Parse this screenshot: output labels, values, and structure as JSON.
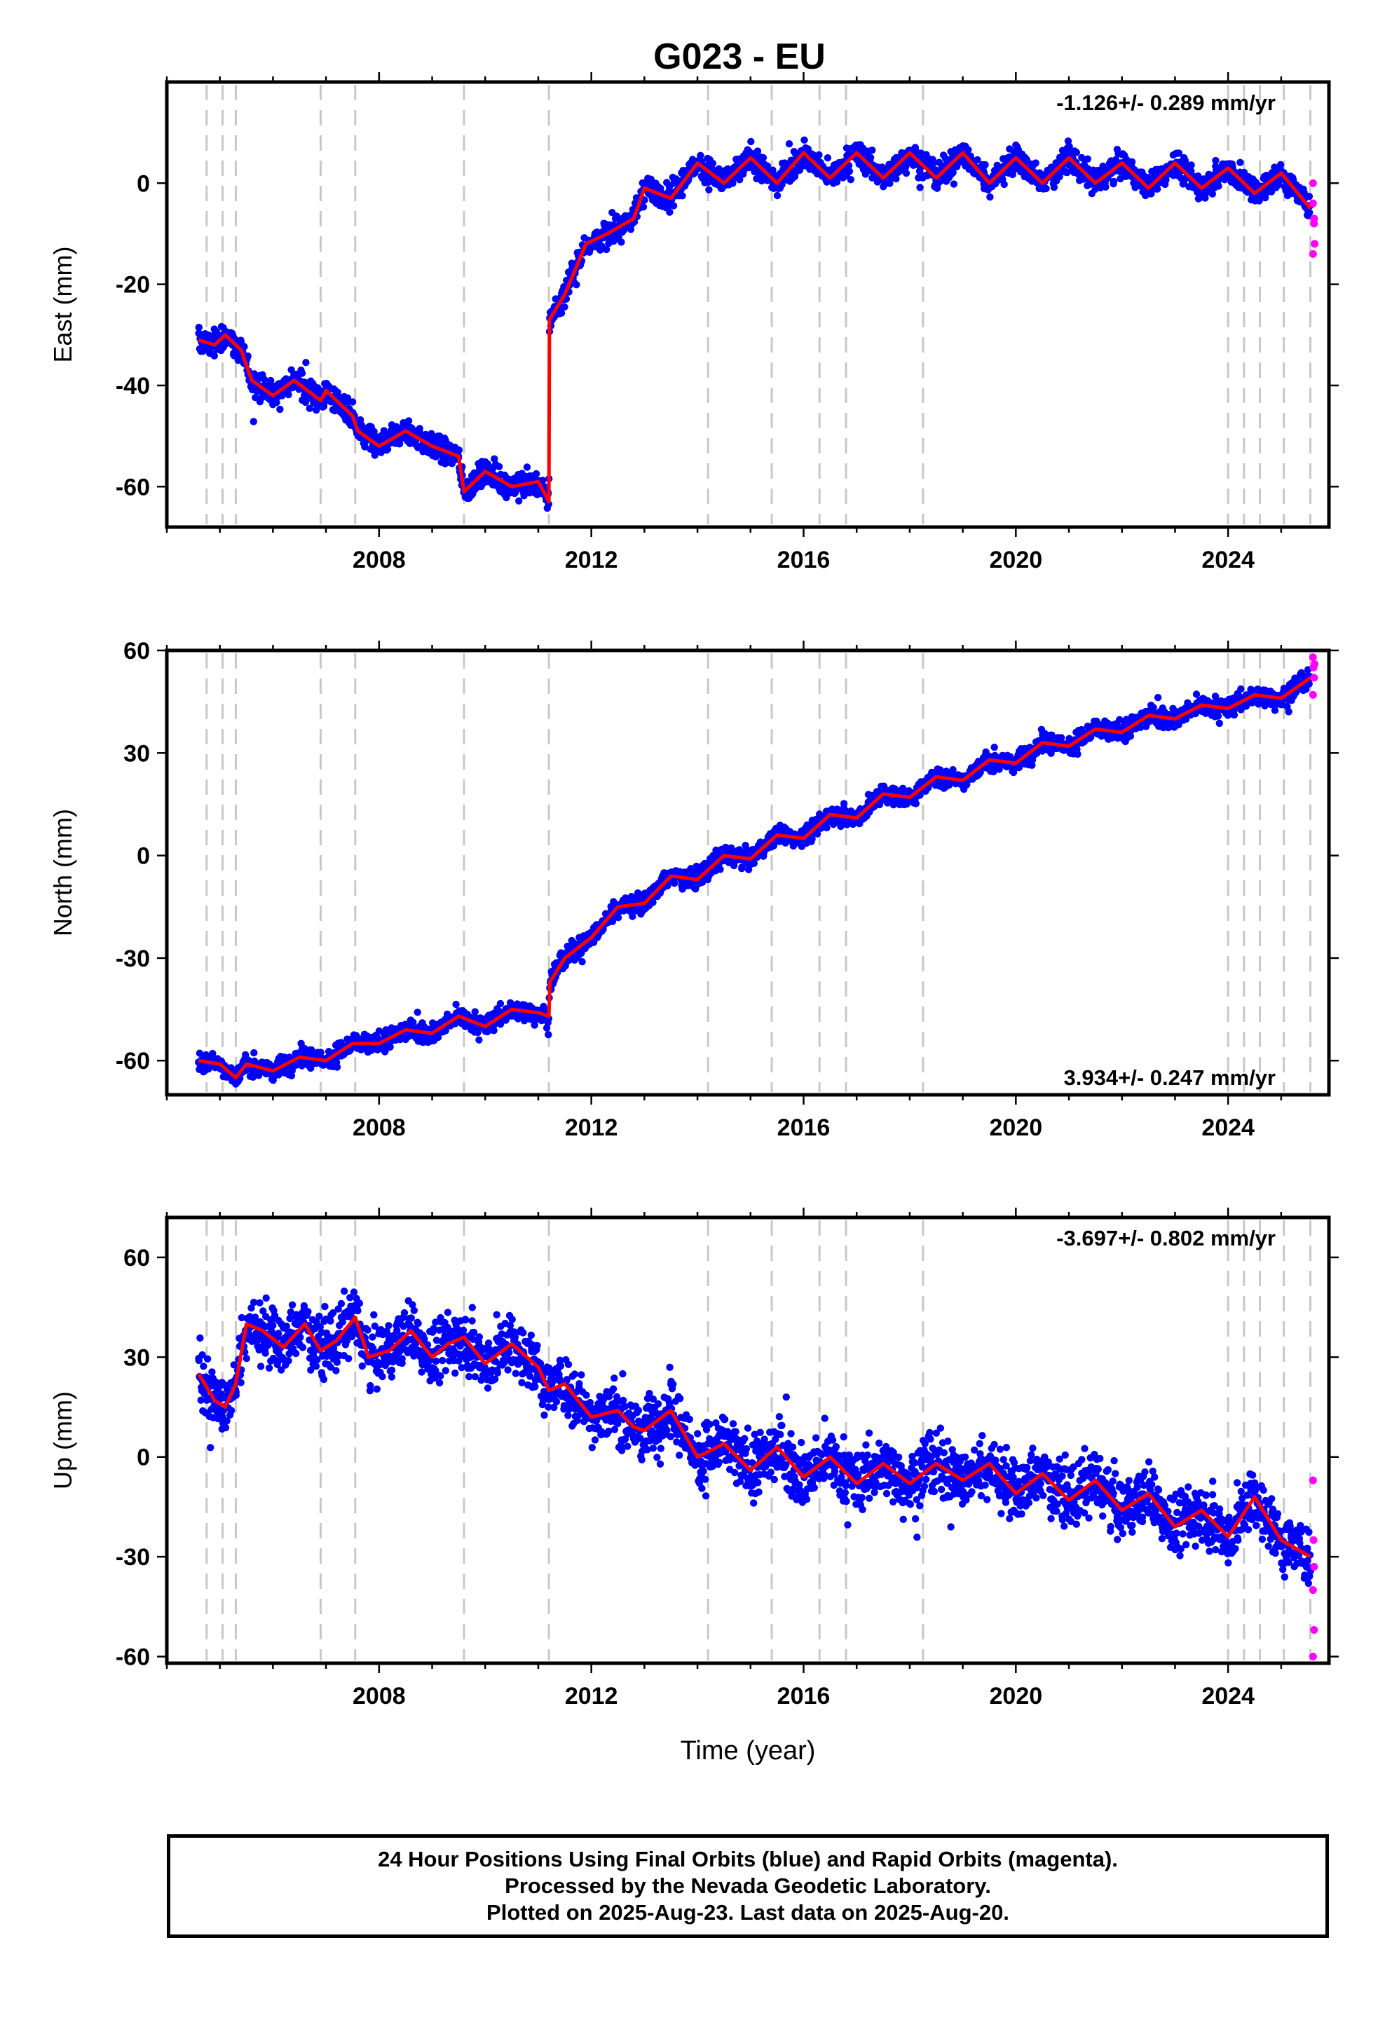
{
  "title": "G023 - EU",
  "colors": {
    "final_orbits": "#0000ff",
    "rapid_orbits": "#ff00ff",
    "model": "#ff0000",
    "event_lines": "#c8c8c8"
  },
  "xlabel": "Time (year)",
  "x_ticks": [
    "2008",
    "2012",
    "2016",
    "2020",
    "2024"
  ],
  "event_lines": [
    2004.75,
    2005.05,
    2005.3,
    2006.9,
    2007.55,
    2009.6,
    2011.2,
    2014.2,
    2015.4,
    2016.3,
    2016.8,
    2018.25,
    2024.0,
    2024.3,
    2024.6,
    2025.05,
    2025.55
  ],
  "chart_data": [
    {
      "type": "scatter",
      "name": "east",
      "ylabel": "East (mm)",
      "xlim": [
        2004.0,
        2025.9
      ],
      "ylim": [
        -68,
        20
      ],
      "y_ticks": [
        0,
        -20,
        -40,
        -60
      ],
      "grid": false,
      "rate_label": "-1.126+/- 0.289 mm/yr",
      "rate_position": "top-right",
      "noise": 1.8,
      "model": {
        "name": "model",
        "x": [
          2004.6,
          2004.9,
          2005.1,
          2005.4,
          2005.6,
          2006.0,
          2006.4,
          2006.9,
          2007.0,
          2007.5,
          2007.6,
          2008.0,
          2008.5,
          2009.0,
          2009.5,
          2009.6,
          2010.0,
          2010.5,
          2011.0,
          2011.2,
          2011.21,
          2011.5,
          2011.9,
          2012.3,
          2012.8,
          2013.0,
          2013.5,
          2014.0,
          2014.5,
          2015.0,
          2015.5,
          2016.0,
          2016.5,
          2017.0,
          2017.5,
          2018.0,
          2018.5,
          2019.0,
          2019.5,
          2020.0,
          2020.5,
          2021.0,
          2021.5,
          2022.0,
          2022.5,
          2023.0,
          2023.5,
          2024.0,
          2024.5,
          2025.0,
          2025.55
        ],
        "y": [
          -31,
          -32,
          -30,
          -33,
          -39,
          -42,
          -39,
          -43,
          -41,
          -46,
          -49,
          -52,
          -49,
          -52,
          -54,
          -61,
          -57,
          -60,
          -59,
          -63,
          -27,
          -22,
          -12,
          -10,
          -7,
          -1,
          -3,
          4,
          0,
          5,
          0,
          6,
          1,
          6,
          1,
          6,
          1,
          6,
          0,
          5,
          0,
          5,
          0,
          4,
          -1,
          4,
          -1,
          3,
          -2,
          2,
          -5
        ]
      },
      "rapid": {
        "name": "rapid",
        "x": [
          2025.6,
          2025.6,
          2025.62,
          2025.63,
          2025.6,
          2025.62
        ],
        "y": [
          0,
          -4,
          -8,
          -12,
          -14,
          -7
        ]
      }
    },
    {
      "type": "scatter",
      "name": "north",
      "ylabel": "North (mm)",
      "xlim": [
        2004.0,
        2025.9
      ],
      "ylim": [
        -70,
        60
      ],
      "y_ticks": [
        60,
        30,
        0,
        -30,
        -60
      ],
      "grid": false,
      "rate_label": "3.934+/- 0.247 mm/yr",
      "rate_position": "bottom-right",
      "noise": 2.0,
      "model": {
        "name": "model",
        "x": [
          2004.6,
          2005.0,
          2005.3,
          2005.5,
          2006.0,
          2006.5,
          2007.0,
          2007.5,
          2008.0,
          2008.5,
          2009.0,
          2009.5,
          2010.0,
          2010.5,
          2011.0,
          2011.2,
          2011.22,
          2011.5,
          2012.0,
          2012.5,
          2013.0,
          2013.5,
          2014.0,
          2014.5,
          2015.0,
          2015.5,
          2016.0,
          2016.5,
          2017.0,
          2017.5,
          2018.0,
          2018.5,
          2019.0,
          2019.5,
          2020.0,
          2020.5,
          2021.0,
          2021.5,
          2022.0,
          2022.5,
          2023.0,
          2023.5,
          2024.0,
          2024.5,
          2025.0,
          2025.55
        ],
        "y": [
          -60,
          -61,
          -65,
          -61,
          -63,
          -59,
          -60,
          -55,
          -55,
          -51,
          -52,
          -47,
          -50,
          -45,
          -46,
          -47,
          -37,
          -30,
          -24,
          -15,
          -14,
          -6,
          -7,
          0,
          -1,
          6,
          5,
          12,
          11,
          18,
          17,
          23,
          22,
          28,
          27,
          33,
          32,
          37,
          36,
          41,
          40,
          44,
          43,
          47,
          46,
          52
        ]
      },
      "rapid": {
        "name": "rapid",
        "x": [
          2025.6,
          2025.61,
          2025.62,
          2025.6,
          2025.63
        ],
        "y": [
          58,
          55,
          52,
          47,
          56
        ]
      }
    },
    {
      "type": "scatter",
      "name": "up",
      "ylabel": "Up (mm)",
      "xlim": [
        2004.0,
        2025.9
      ],
      "ylim": [
        -62,
        72
      ],
      "y_ticks": [
        60,
        30,
        0,
        -30,
        -60
      ],
      "grid": false,
      "rate_label": "-3.697+/- 0.802 mm/yr",
      "rate_position": "top-right",
      "noise": 6.5,
      "model": {
        "name": "model",
        "x": [
          2004.6,
          2004.9,
          2005.1,
          2005.3,
          2005.5,
          2005.8,
          2006.2,
          2006.6,
          2006.9,
          2007.2,
          2007.55,
          2007.8,
          2008.2,
          2008.6,
          2009.0,
          2009.3,
          2009.6,
          2010.0,
          2010.5,
          2011.0,
          2011.2,
          2011.5,
          2012.0,
          2012.5,
          2012.8,
          2013.0,
          2013.5,
          2014.0,
          2014.5,
          2015.0,
          2015.5,
          2016.0,
          2016.5,
          2017.0,
          2017.5,
          2018.0,
          2018.5,
          2019.0,
          2019.5,
          2020.0,
          2020.5,
          2021.0,
          2021.5,
          2022.0,
          2022.5,
          2023.0,
          2023.5,
          2024.0,
          2024.5,
          2025.0,
          2025.55
        ],
        "y": [
          25,
          17,
          15,
          22,
          40,
          38,
          33,
          40,
          32,
          35,
          42,
          30,
          32,
          38,
          30,
          34,
          36,
          28,
          34,
          27,
          20,
          22,
          12,
          14,
          9,
          8,
          14,
          0,
          4,
          -4,
          3,
          -6,
          0,
          -8,
          -2,
          -8,
          -2,
          -7,
          -2,
          -11,
          -5,
          -13,
          -7,
          -16,
          -11,
          -21,
          -16,
          -24,
          -12,
          -25,
          -30
        ]
      },
      "rapid": {
        "name": "rapid",
        "x": [
          2025.6,
          2025.61,
          2025.62,
          2025.6,
          2025.62,
          2025.6
        ],
        "y": [
          -7,
          -25,
          -33,
          -40,
          -52,
          -60
        ]
      }
    }
  ],
  "footer": {
    "line1": "24 Hour Positions Using Final Orbits (blue) and Rapid Orbits (magenta).",
    "line2": "Processed by the Nevada Geodetic Laboratory.",
    "line3": "Plotted on 2025-Aug-23. Last data on 2025-Aug-20."
  }
}
